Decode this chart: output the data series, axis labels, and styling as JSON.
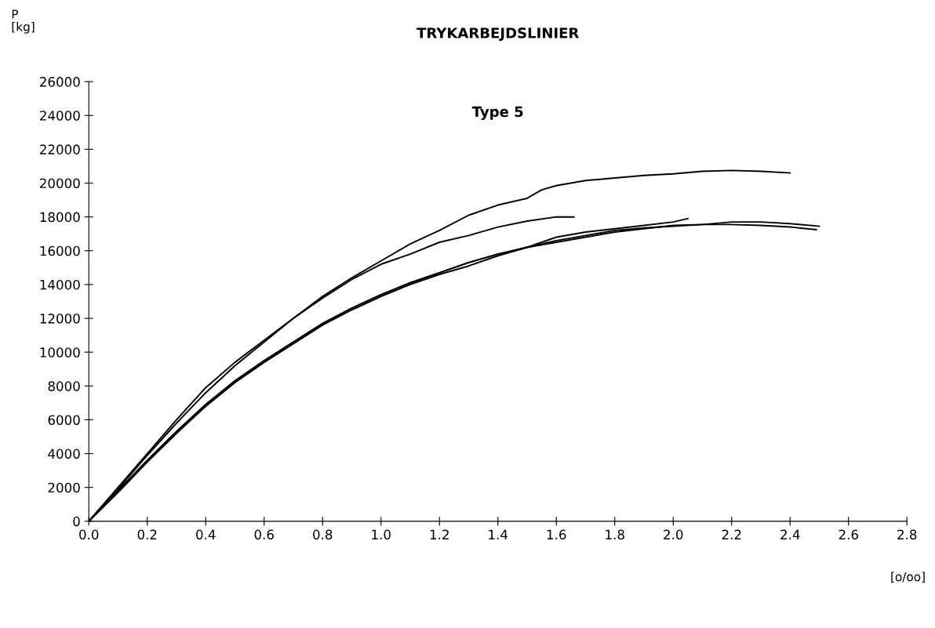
{
  "chart_data": {
    "type": "line",
    "title": "TRYKARBEJDSLINIER",
    "subtitle": "Type 5",
    "ylabel": "P\n[kg]",
    "xlabel": "[o/oo]",
    "xlim": [
      0,
      2.8
    ],
    "ylim": [
      0,
      26000
    ],
    "xticks": [
      {
        "value": 0,
        "label": "0.0"
      },
      {
        "value": 0.2,
        "label": "0.2"
      },
      {
        "value": 0.4,
        "label": "0.4"
      },
      {
        "value": 0.6,
        "label": "0.6"
      },
      {
        "value": 0.8,
        "label": "0.8"
      },
      {
        "value": 1.0,
        "label": "1.0"
      },
      {
        "value": 1.2,
        "label": "1.2"
      },
      {
        "value": 1.4,
        "label": "1.4"
      },
      {
        "value": 1.6,
        "label": "1.6"
      },
      {
        "value": 1.8,
        "label": "1.8"
      },
      {
        "value": 2.0,
        "label": "2.0"
      },
      {
        "value": 2.2,
        "label": "2.2"
      },
      {
        "value": 2.4,
        "label": "2.4"
      },
      {
        "value": 2.6,
        "label": "2.6"
      },
      {
        "value": 2.8,
        "label": "2.8"
      }
    ],
    "yticks": [
      0,
      2000,
      4000,
      6000,
      8000,
      10000,
      12000,
      14000,
      16000,
      18000,
      20000,
      22000,
      24000,
      26000
    ],
    "grid": false,
    "legend": false,
    "marker": "none",
    "line_style": "solid",
    "series": [
      {
        "color": "#000000",
        "x": [
          0,
          0.1,
          0.2,
          0.3,
          0.4,
          0.5,
          0.6,
          0.7,
          0.8,
          0.9,
          1.0,
          1.1,
          1.2,
          1.3,
          1.4,
          1.5,
          1.55,
          1.6,
          1.7,
          1.8,
          1.9,
          2.0,
          2.1,
          2.2,
          2.3,
          2.4
        ],
        "values": [
          0,
          2000,
          4000,
          6000,
          7900,
          9400,
          10700,
          12000,
          13300,
          14400,
          15400,
          16400,
          17200,
          18100,
          18700,
          19100,
          19600,
          19850,
          20150,
          20300,
          20450,
          20550,
          20700,
          20750,
          20700,
          20600
        ]
      },
      {
        "color": "#000000",
        "x": [
          0,
          0.1,
          0.2,
          0.3,
          0.4,
          0.5,
          0.6,
          0.7,
          0.8,
          0.9,
          1.0,
          1.1,
          1.2,
          1.3,
          1.4,
          1.5,
          1.6,
          1.66
        ],
        "values": [
          0,
          1900,
          3900,
          5800,
          7600,
          9200,
          10600,
          12000,
          13200,
          14300,
          15200,
          15800,
          16500,
          16900,
          17400,
          17750,
          18000,
          18000
        ]
      },
      {
        "color": "#000000",
        "x": [
          0,
          0.1,
          0.2,
          0.3,
          0.4,
          0.5,
          0.6,
          0.7,
          0.8,
          0.9,
          1.0,
          1.1,
          1.2,
          1.3,
          1.4,
          1.5,
          1.6,
          1.7,
          1.8,
          1.9,
          2.0,
          2.05
        ],
        "values": [
          0,
          1800,
          3600,
          5300,
          6900,
          8300,
          9500,
          10600,
          11700,
          12600,
          13400,
          14100,
          14700,
          15300,
          15800,
          16200,
          16800,
          17100,
          17300,
          17500,
          17700,
          17900
        ]
      },
      {
        "color": "#000000",
        "x": [
          0,
          0.1,
          0.2,
          0.3,
          0.4,
          0.5,
          0.6,
          0.7,
          0.8,
          0.9,
          1.0,
          1.1,
          1.2,
          1.3,
          1.4,
          1.5,
          1.6,
          1.7,
          1.8,
          1.9,
          2.0,
          2.1,
          2.2,
          2.3,
          2.4,
          2.5
        ],
        "values": [
          0,
          1800,
          3600,
          5300,
          6900,
          8300,
          9500,
          10600,
          11700,
          12600,
          13400,
          14100,
          14700,
          15300,
          15800,
          16200,
          16600,
          16900,
          17200,
          17350,
          17450,
          17550,
          17700,
          17700,
          17600,
          17450
        ]
      },
      {
        "color": "#000000",
        "x": [
          0,
          0.1,
          0.2,
          0.3,
          0.4,
          0.5,
          0.6,
          0.7,
          0.8,
          0.9,
          1.0,
          1.1,
          1.2,
          1.3,
          1.4,
          1.5,
          1.6,
          1.7,
          1.8,
          1.9,
          2.0,
          2.1,
          2.2,
          2.3,
          2.4,
          2.49
        ],
        "values": [
          0,
          1700,
          3500,
          5200,
          6800,
          8200,
          9400,
          10500,
          11600,
          12500,
          13300,
          14000,
          14600,
          15100,
          15700,
          16200,
          16500,
          16800,
          17100,
          17300,
          17500,
          17550,
          17550,
          17500,
          17400,
          17250
        ]
      }
    ]
  }
}
